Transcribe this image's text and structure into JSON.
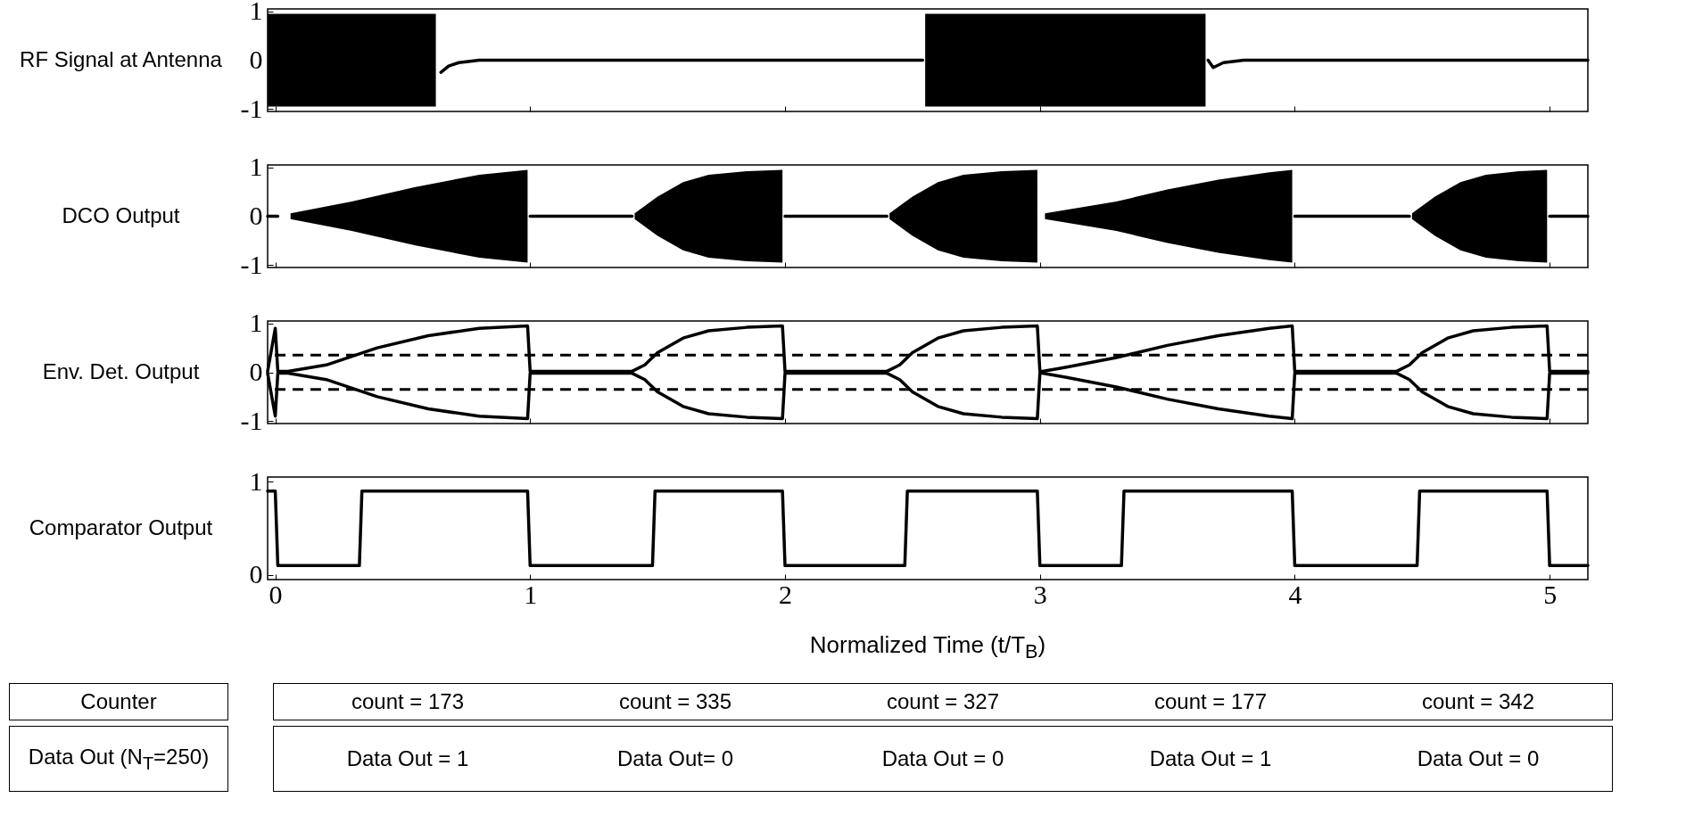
{
  "chart_data": [
    {
      "type": "line",
      "ylabel": "RF Signal at Antenna",
      "xlim": [
        -0.03,
        5.15
      ],
      "xticks": [
        0,
        1,
        2,
        3,
        4,
        5
      ],
      "ylim": [
        -1.05,
        1.05
      ],
      "yticks": [
        -1,
        0,
        1
      ],
      "tick_labels": "y",
      "grid": false,
      "series": [
        {
          "color": "#000000",
          "x": [
            -0.03,
            0,
            0.62,
            0.63,
            0.65,
            0.68,
            0.72,
            0.8,
            0.9,
            1.5,
            2.0,
            2.54,
            2.55,
            3.65,
            3.66,
            3.68,
            3.72,
            3.8,
            4.0,
            4.5,
            5.15
          ],
          "values": [
            null,
            null,
            null,
            null,
            -0.25,
            -0.12,
            -0.05,
            0,
            0,
            0,
            0,
            0,
            null,
            null,
            0,
            -0.15,
            -0.05,
            0,
            0,
            0,
            0
          ],
          "lower": [
            -0.95,
            -0.95,
            -0.95,
            -0.95,
            null,
            null,
            null,
            null,
            null,
            null,
            null,
            null,
            -0.95,
            -0.95,
            null,
            null,
            null,
            null,
            null,
            null,
            null
          ],
          "upper": [
            0.95,
            0.95,
            0.95,
            0.95,
            null,
            null,
            null,
            null,
            null,
            null,
            null,
            null,
            0.95,
            0.95,
            null,
            null,
            null,
            null,
            null,
            null,
            null
          ]
        }
      ]
    },
    {
      "type": "line",
      "ylabel": "DCO Output",
      "xlim": [
        -0.03,
        5.15
      ],
      "xticks": [
        0,
        1,
        2,
        3,
        4,
        5
      ],
      "ylim": [
        -1.05,
        1.05
      ],
      "yticks": [
        -1,
        0,
        1
      ],
      "tick_labels": "y",
      "grid": false,
      "series": [
        {
          "color": "#000000",
          "x": [
            -0.03,
            0,
            0.01,
            0.05,
            0.06,
            0.3,
            0.55,
            0.8,
            0.99,
            1.0,
            1.01,
            1.4,
            1.41,
            1.5,
            1.6,
            1.7,
            1.85,
            1.99,
            2.0,
            2.01,
            2.4,
            2.41,
            2.5,
            2.6,
            2.7,
            2.85,
            2.99,
            3.0,
            3.01,
            3.02,
            3.3,
            3.5,
            3.7,
            3.9,
            3.99,
            4.0,
            4.01,
            4.45,
            4.46,
            4.55,
            4.65,
            4.75,
            4.88,
            4.99,
            5.0,
            5.01,
            5.15
          ],
          "values": [
            0,
            0,
            0,
            null,
            null,
            null,
            null,
            null,
            null,
            0,
            0,
            0,
            null,
            null,
            null,
            null,
            null,
            null,
            0,
            0,
            0,
            null,
            null,
            null,
            null,
            null,
            null,
            null,
            null,
            null,
            null,
            null,
            null,
            null,
            null,
            0,
            0,
            0,
            null,
            null,
            null,
            null,
            null,
            null,
            0,
            0,
            0
          ],
          "lower": [
            null,
            null,
            null,
            null,
            -0.06,
            -0.3,
            -0.6,
            -0.85,
            -0.95,
            null,
            null,
            null,
            -0.06,
            -0.4,
            -0.7,
            -0.85,
            -0.92,
            -0.95,
            null,
            null,
            null,
            -0.06,
            -0.4,
            -0.7,
            -0.85,
            -0.92,
            -0.95,
            null,
            null,
            -0.06,
            -0.3,
            -0.55,
            -0.75,
            -0.9,
            -0.95,
            null,
            null,
            null,
            -0.06,
            -0.4,
            -0.7,
            -0.85,
            -0.92,
            -0.95,
            null,
            null,
            null
          ],
          "upper": [
            null,
            null,
            null,
            null,
            0.06,
            0.3,
            0.6,
            0.85,
            0.95,
            null,
            null,
            null,
            0.06,
            0.4,
            0.7,
            0.85,
            0.92,
            0.95,
            null,
            null,
            null,
            0.06,
            0.4,
            0.7,
            0.85,
            0.92,
            0.95,
            null,
            null,
            0.06,
            0.3,
            0.55,
            0.75,
            0.9,
            0.95,
            null,
            null,
            null,
            0.06,
            0.4,
            0.7,
            0.85,
            0.92,
            0.95,
            null,
            null,
            null
          ]
        }
      ]
    },
    {
      "type": "line",
      "ylabel": "Env. Det. Output",
      "xlim": [
        -0.03,
        5.15
      ],
      "xticks": [
        0,
        1,
        2,
        3,
        4,
        5
      ],
      "ylim": [
        -1.05,
        1.05
      ],
      "yticks": [
        -1,
        0,
        1
      ],
      "tick_labels": "y",
      "grid": false,
      "ref_lines": [
        {
          "axis": "y",
          "value": 0.35,
          "line_style": "dashed",
          "color": "#000000"
        },
        {
          "axis": "y",
          "value": -0.35,
          "line_style": "dashed",
          "color": "#000000"
        }
      ],
      "series": [
        {
          "color": "#000000",
          "x": [
            -0.03,
            0,
            0.01,
            0.05,
            0.2,
            0.4,
            0.6,
            0.8,
            0.99,
            1.0,
            1.01,
            1.4,
            1.45,
            1.5,
            1.6,
            1.7,
            1.85,
            1.99,
            2.0,
            2.01,
            2.4,
            2.45,
            2.5,
            2.6,
            2.7,
            2.85,
            2.99,
            3.0,
            3.01,
            3.1,
            3.3,
            3.5,
            3.7,
            3.9,
            3.99,
            4.0,
            4.01,
            4.4,
            4.45,
            4.5,
            4.6,
            4.7,
            4.85,
            4.99,
            5.0,
            5.01,
            5.15
          ],
          "values": [
            0.02,
            0.9,
            0.02,
            0.02,
            0.15,
            0.5,
            0.75,
            0.9,
            0.95,
            0.02,
            0.02,
            0.02,
            0.15,
            0.4,
            0.7,
            0.85,
            0.92,
            0.95,
            0.02,
            0.02,
            0.02,
            0.15,
            0.4,
            0.7,
            0.85,
            0.92,
            0.95,
            0.02,
            0.02,
            0.1,
            0.3,
            0.55,
            0.75,
            0.9,
            0.95,
            0.02,
            0.02,
            0.02,
            0.15,
            0.4,
            0.7,
            0.85,
            0.92,
            0.95,
            0.02,
            0.02,
            0.02
          ]
        },
        {
          "color": "#000000",
          "x": [
            -0.03,
            0,
            0.01,
            0.05,
            0.2,
            0.4,
            0.6,
            0.8,
            0.99,
            1.0,
            1.01,
            1.4,
            1.45,
            1.5,
            1.6,
            1.7,
            1.85,
            1.99,
            2.0,
            2.01,
            2.4,
            2.45,
            2.5,
            2.6,
            2.7,
            2.85,
            2.99,
            3.0,
            3.01,
            3.1,
            3.3,
            3.5,
            3.7,
            3.9,
            3.99,
            4.0,
            4.01,
            4.4,
            4.45,
            4.5,
            4.6,
            4.7,
            4.85,
            4.99,
            5.0,
            5.01,
            5.15
          ],
          "values": [
            -0.02,
            -0.9,
            -0.02,
            -0.02,
            -0.15,
            -0.5,
            -0.75,
            -0.9,
            -0.95,
            -0.02,
            -0.02,
            -0.02,
            -0.15,
            -0.4,
            -0.7,
            -0.85,
            -0.92,
            -0.95,
            -0.02,
            -0.02,
            -0.02,
            -0.15,
            -0.4,
            -0.7,
            -0.85,
            -0.92,
            -0.95,
            -0.02,
            -0.02,
            -0.1,
            -0.3,
            -0.55,
            -0.75,
            -0.9,
            -0.95,
            -0.02,
            -0.02,
            -0.02,
            -0.15,
            -0.4,
            -0.7,
            -0.85,
            -0.92,
            -0.95,
            -0.02,
            -0.02,
            -0.02
          ]
        }
      ]
    },
    {
      "type": "line",
      "ylabel": "Comparator Output",
      "xlabel": "Normalized Time (t/T$_{B}$)",
      "xlim": [
        -0.03,
        5.15
      ],
      "xticks": [
        0,
        1,
        2,
        3,
        4,
        5
      ],
      "ylim": [
        -0.05,
        1.05
      ],
      "yticks": [
        0,
        1
      ],
      "grid": false,
      "series": [
        {
          "color": "#000000",
          "x": [
            -0.03,
            0,
            0.01,
            0.33,
            0.34,
            0.99,
            1.0,
            1.48,
            1.49,
            1.99,
            2.0,
            2.47,
            2.48,
            2.99,
            3.0,
            3.32,
            3.33,
            3.99,
            4.0,
            4.48,
            4.49,
            4.99,
            5.0,
            5.15
          ],
          "values": [
            0.9,
            0.9,
            0.1,
            0.1,
            0.9,
            0.9,
            0.1,
            0.1,
            0.9,
            0.9,
            0.1,
            0.1,
            0.9,
            0.9,
            0.1,
            0.1,
            0.9,
            0.9,
            0.1,
            0.1,
            0.9,
            0.9,
            0.1,
            0.1
          ]
        }
      ]
    },
    {
      "type": "other",
      "annotations": [
        "Counter",
        "count = 173",
        "count = 335",
        "count = 327",
        "count = 177",
        "count = 342",
        "Data Out (N$_{T}$=250)",
        "Data Out = 1",
        "Data Out= 0",
        "Data Out = 0",
        "Data Out = 1",
        "Data Out = 0"
      ]
    }
  ]
}
